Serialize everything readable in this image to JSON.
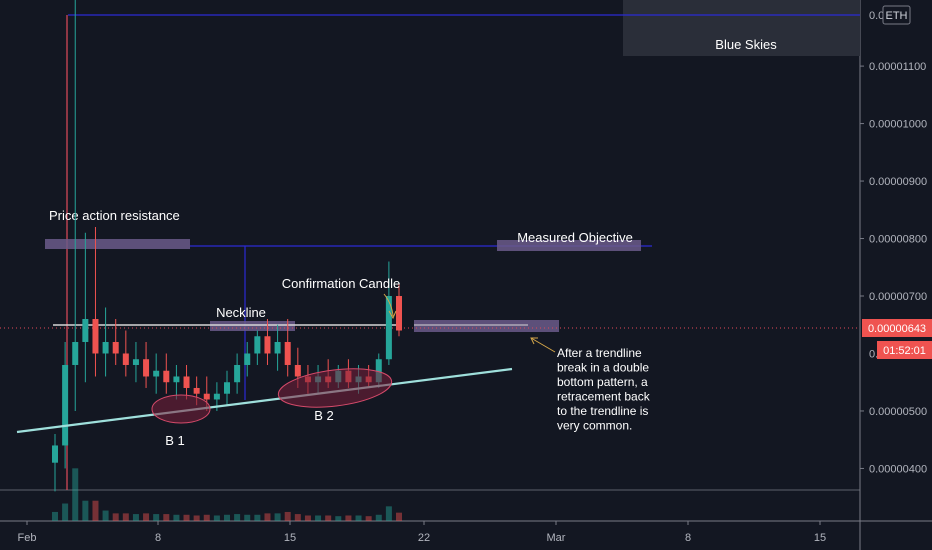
{
  "chart_data": {
    "type": "candlestick",
    "title": "",
    "quote_currency": "ETH",
    "y_ticks": [
      "0.00001100",
      "0.00001000",
      "0.00000900",
      "0.00000800",
      "0.00000700",
      "0.00000500",
      "0.00000400"
    ],
    "top_tick_partial": "0.0",
    "mid_tick_partial": "0.",
    "x_ticks": [
      "Feb",
      "8",
      "15",
      "22",
      "Mar",
      "8",
      "15"
    ],
    "ylim": [
      3.625e-06,
      1.215e-05
    ],
    "current_price": "0.00000643",
    "countdown": "01:52:01",
    "annotations": {
      "blue_skies": "Blue Skies",
      "price_action_resistance": "Price action resistance",
      "measured_objective": "Measured Objective",
      "confirmation_candle": "Confirmation Candle",
      "neckline": "Neckline",
      "bottom_1": "B 1",
      "bottom_2": "B 2",
      "note_lines": [
        "After a trendline",
        "break in a double",
        "bottom pattern, a",
        "retracement back",
        "to the trendline is",
        "very common."
      ]
    },
    "levels": {
      "resistance": 7.88e-06,
      "measured_objective": 7.87e-06,
      "neckline": 6.5e-06,
      "blue_skies": 1.22e-05
    },
    "candles": [
      [
        4.1e-06,
        4.6e-06,
        3.6e-06,
        4.4e-06
      ],
      [
        4.4e-06,
        6.2e-06,
        4e-06,
        5.8e-06
      ],
      [
        5.8e-06,
        1.22e-05,
        5e-06,
        6.2e-06
      ],
      [
        6.2e-06,
        8.1e-06,
        5.5e-06,
        6.6e-06
      ],
      [
        6.6e-06,
        8.2e-06,
        5.6e-06,
        6e-06
      ],
      [
        6e-06,
        6.8e-06,
        5.6e-06,
        6.2e-06
      ],
      [
        6.2e-06,
        6.6e-06,
        5.8e-06,
        6e-06
      ],
      [
        6e-06,
        6.4e-06,
        5.6e-06,
        5.8e-06
      ],
      [
        5.8e-06,
        6.2e-06,
        5.5e-06,
        5.9e-06
      ],
      [
        5.9e-06,
        6.2e-06,
        5.4e-06,
        5.6e-06
      ],
      [
        5.6e-06,
        6e-06,
        5.3e-06,
        5.7e-06
      ],
      [
        5.7e-06,
        6e-06,
        5.3e-06,
        5.5e-06
      ],
      [
        5.5e-06,
        5.8e-06,
        5.2e-06,
        5.6e-06
      ],
      [
        5.6e-06,
        5.8e-06,
        5.2e-06,
        5.4e-06
      ],
      [
        5.4e-06,
        5.6e-06,
        5.1e-06,
        5.3e-06
      ],
      [
        5.3e-06,
        5.6e-06,
        5e-06,
        5.2e-06
      ],
      [
        5.2e-06,
        5.5e-06,
        5e-06,
        5.3e-06
      ],
      [
        5.3e-06,
        5.7e-06,
        5.1e-06,
        5.5e-06
      ],
      [
        5.5e-06,
        6e-06,
        5.3e-06,
        5.8e-06
      ],
      [
        5.8e-06,
        6.2e-06,
        5.6e-06,
        6e-06
      ],
      [
        6e-06,
        6.4e-06,
        5.8e-06,
        6.3e-06
      ],
      [
        6.3e-06,
        6.6e-06,
        5.8e-06,
        6e-06
      ],
      [
        6e-06,
        6.5e-06,
        5.7e-06,
        6.2e-06
      ],
      [
        6.2e-06,
        6.6e-06,
        5.6e-06,
        5.8e-06
      ],
      [
        5.8e-06,
        6.1e-06,
        5.4e-06,
        5.6e-06
      ],
      [
        5.6e-06,
        5.8e-06,
        5.3e-06,
        5.5e-06
      ],
      [
        5.5e-06,
        5.8e-06,
        5.3e-06,
        5.6e-06
      ],
      [
        5.6e-06,
        5.9e-06,
        5.4e-06,
        5.5e-06
      ],
      [
        5.5e-06,
        5.8e-06,
        5.4e-06,
        5.7e-06
      ],
      [
        5.7e-06,
        5.9e-06,
        5.4e-06,
        5.5e-06
      ],
      [
        5.5e-06,
        5.8e-06,
        5.3e-06,
        5.6e-06
      ],
      [
        5.6e-06,
        5.8e-06,
        5.4e-06,
        5.5e-06
      ],
      [
        5.5e-06,
        6e-06,
        5.4e-06,
        5.9e-06
      ],
      [
        5.9e-06,
        7.6e-06,
        5.8e-06,
        7e-06
      ],
      [
        7e-06,
        7.2e-06,
        6.3e-06,
        6.4e-06
      ]
    ]
  }
}
